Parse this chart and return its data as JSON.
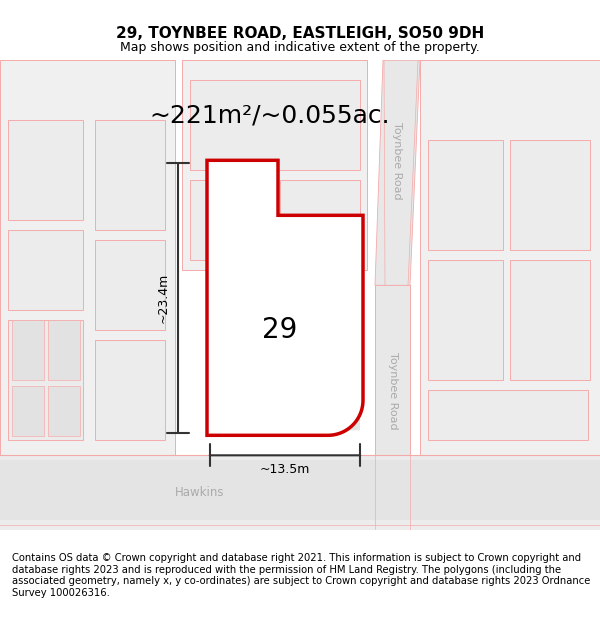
{
  "title": "29, TOYNBEE ROAD, EASTLEIGH, SO50 9DH",
  "subtitle": "Map shows position and indicative extent of the property.",
  "footer": "Contains OS data © Crown copyright and database right 2021. This information is subject to Crown copyright and database rights 2023 and is reproduced with the permission of HM Land Registry. The polygons (including the associated geometry, namely x, y co-ordinates) are subject to Crown copyright and database rights 2023 Ordnance Survey 100026316.",
  "area_label": "~221m²/~0.055ac.",
  "number_label": "29",
  "dim_height": "~23.4m",
  "dim_width": "~13.5m",
  "road_label_top": "Toynbee Road",
  "road_label_bottom": "Toynbee Road",
  "street_label": "Hawkins",
  "bg_color": "#ffffff",
  "plot_edge_color": "#cc0000",
  "map_line_color": "#f5aaaa",
  "block_fill": "#ececec",
  "block_edge": "#f5aaaa",
  "road_fill": "#e0e0e0",
  "dim_line_color": "#333333",
  "title_fontsize": 11,
  "subtitle_fontsize": 9,
  "footer_fontsize": 7.2,
  "area_label_fontsize": 18,
  "number_fontsize": 20
}
